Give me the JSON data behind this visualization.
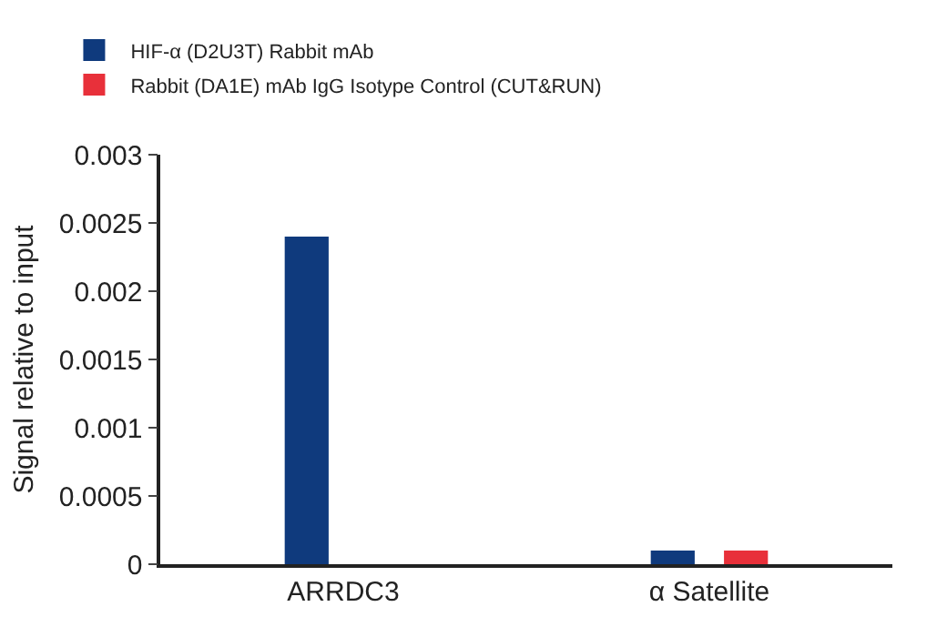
{
  "chart_data": {
    "type": "bar",
    "ylabel": "Signal relative to input",
    "categories": [
      "ARRDC3",
      "α Satellite"
    ],
    "series": [
      {
        "name": "HIF-α (D2U3T) Rabbit mAb",
        "color": "#0f3a7d",
        "values": [
          0.0024,
          0.0001
        ]
      },
      {
        "name": "Rabbit (DA1E) mAb IgG Isotype Control (CUT&RUN)",
        "color": "#e8303a",
        "values": [
          0,
          0.0001
        ]
      }
    ],
    "ylim": [
      0,
      0.003
    ],
    "yticks": [
      0,
      0.0005,
      0.001,
      0.0015,
      0.002,
      0.0025,
      0.003
    ],
    "grid": false,
    "legend": "top left"
  }
}
